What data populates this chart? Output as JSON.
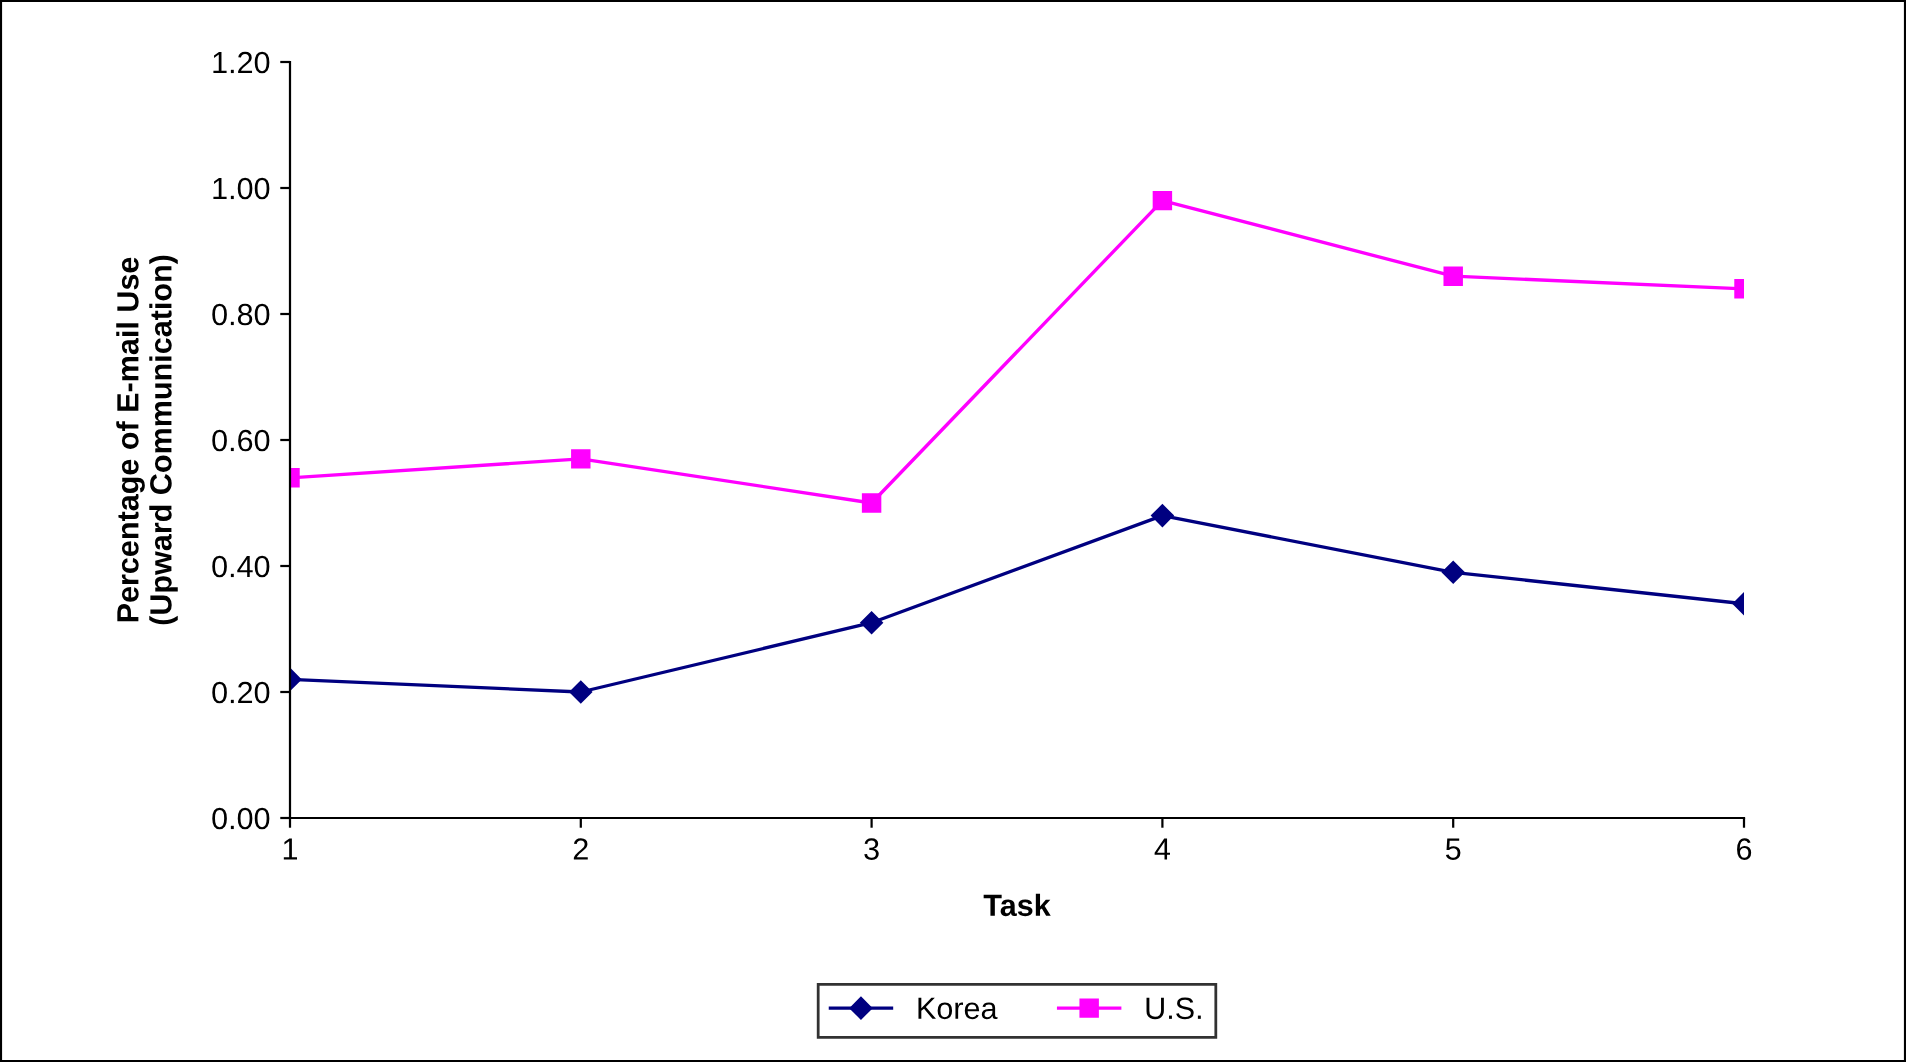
{
  "chart_data": {
    "type": "line",
    "xlabel": "Task",
    "ylabel": "Percentage of E-mail Use\n(Upward Communication)",
    "categories": [
      "1",
      "2",
      "3",
      "4",
      "5",
      "6"
    ],
    "series": [
      {
        "name": "Korea",
        "color": "#000080",
        "marker": "diamond",
        "values": [
          0.22,
          0.2,
          0.31,
          0.48,
          0.39,
          0.34
        ]
      },
      {
        "name": "U.S.",
        "color": "#ff00ff",
        "marker": "square",
        "values": [
          0.54,
          0.57,
          0.5,
          0.98,
          0.86,
          0.84
        ]
      }
    ],
    "ylim": [
      0,
      1.2
    ],
    "yticks": [
      {
        "value": 0,
        "label": "0.00"
      },
      {
        "value": 0.2,
        "label": "0.20"
      },
      {
        "value": 0.4,
        "label": "0.40"
      },
      {
        "value": 0.6,
        "label": "0.60"
      },
      {
        "value": 0.8,
        "label": "0.80"
      },
      {
        "value": 1.0,
        "label": "1.00"
      },
      {
        "value": 1.2,
        "label": "1.20"
      }
    ],
    "grid": false,
    "legend": "bottom",
    "line_style": "solid"
  }
}
